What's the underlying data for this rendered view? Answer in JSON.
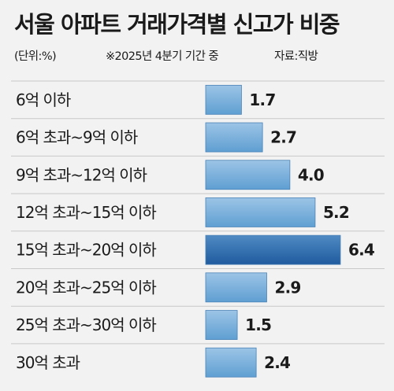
{
  "chart_data": {
    "type": "bar",
    "orientation": "horizontal",
    "title": "서울 아파트 거래가격별 신고가 비중",
    "unit_note": "(단위:%)",
    "period_note": "※2025년 4분기 기간 중",
    "source": "자료:직방",
    "categories": [
      "6억 이하",
      "6억 초과~9억 이하",
      "9억 초과~12억 이하",
      "12억 초과~15억 이하",
      "15억 초과~20억 이하",
      "20억 초과~25억 이하",
      "25억 초과~30억 이하",
      "30억 초과"
    ],
    "values": [
      1.7,
      2.7,
      4.0,
      5.2,
      6.4,
      2.9,
      1.5,
      2.4
    ],
    "value_labels": [
      "1.7",
      "2.7",
      "4.0",
      "5.2",
      "6.4",
      "2.9",
      "1.5",
      "2.4"
    ],
    "highlight_index": 4,
    "grid": false,
    "colors": {
      "bar_top": "#9cc4e6",
      "bar_bottom": "#5f9fd2",
      "bar_highlight_top": "#4f8ac4",
      "bar_highlight_bottom": "#1f5b9e",
      "bar_stroke": "#4a82b6",
      "background": "#f2f2f2",
      "divider": "#c8c8c8"
    }
  }
}
